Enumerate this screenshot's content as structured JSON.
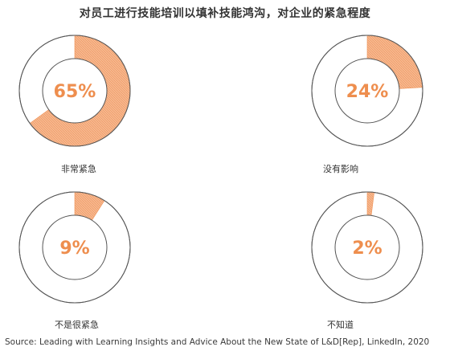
{
  "title": "对员工进行技能培训以填补技能鸿沟，对企业的紧急程度",
  "source": "Source: Leading with Learning Insights and Advice About the New State of L&D[Rep], LinkedIn, 2020",
  "colors": {
    "accent": "#f4a878",
    "accent_text": "#ee8e4e",
    "ring_stroke": "#555555"
  },
  "chart_data": [
    {
      "type": "pie",
      "label": "非常紧急",
      "value": 65,
      "value_label": "65%"
    },
    {
      "type": "pie",
      "label": "没有影响",
      "value": 24,
      "value_label": "24%"
    },
    {
      "type": "pie",
      "label": "不是很紧急",
      "value": 9,
      "value_label": "9%"
    },
    {
      "type": "pie",
      "label": "不知道",
      "value": 2,
      "value_label": "2%"
    }
  ]
}
